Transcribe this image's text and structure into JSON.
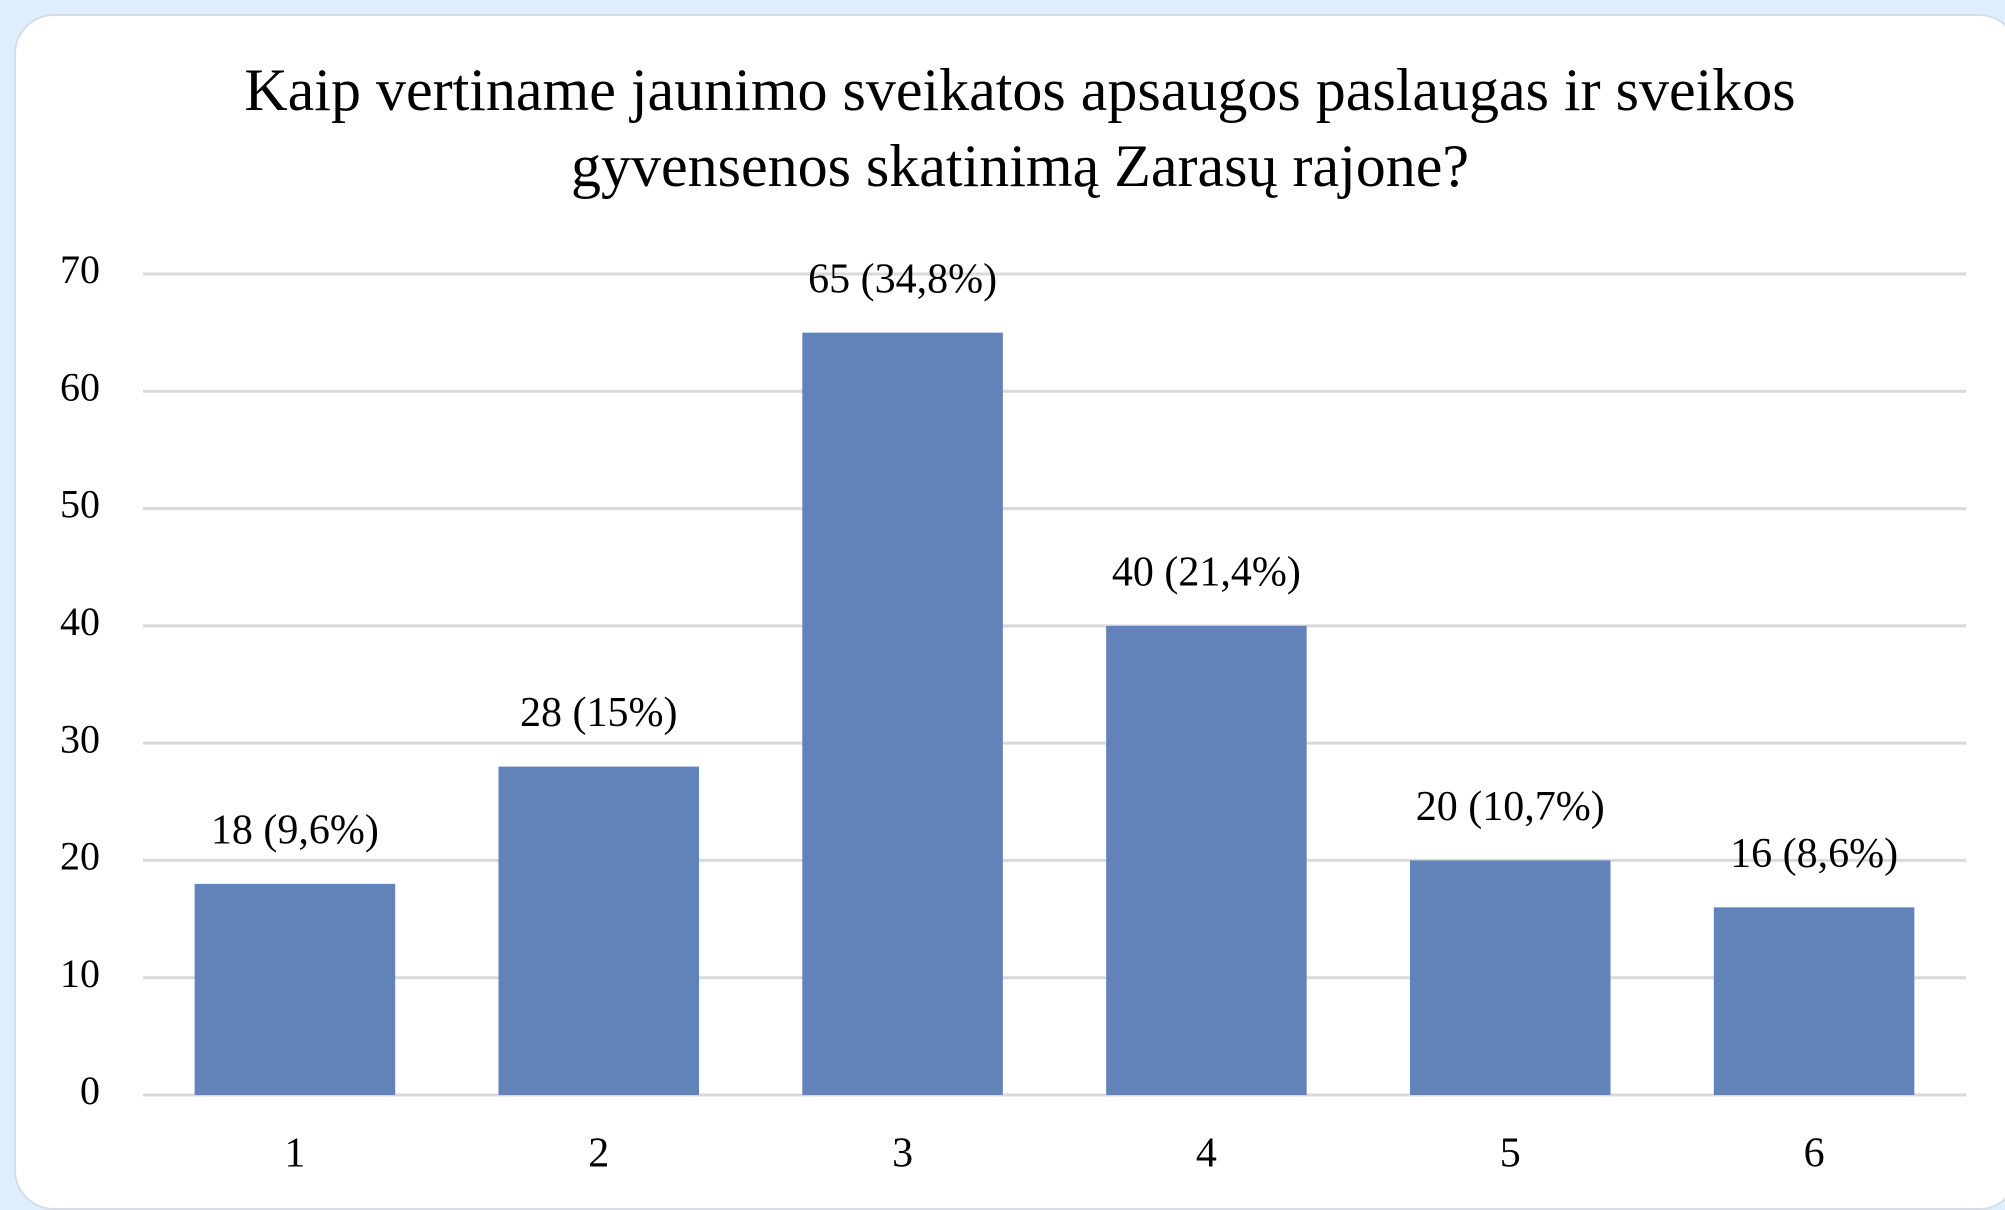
{
  "chart_data": {
    "type": "bar",
    "title": "Kaip vertiname jaunimo sveikatos apsaugos paslaugas ir sveikos gyvensenos skatinimą Zarasų rajone?",
    "categories": [
      "1",
      "2",
      "3",
      "4",
      "5",
      "6"
    ],
    "values": [
      18,
      28,
      65,
      40,
      20,
      16
    ],
    "value_labels": [
      "18 (9,6%)",
      "28 (15%)",
      "65 (34,8%)",
      "40 (21,4%)",
      "20 (10,7%)",
      "16 (8,6%)"
    ],
    "color": "#6183b9",
    "ylim": [
      0,
      70
    ],
    "yticks": [
      0,
      10,
      20,
      30,
      40,
      50,
      60,
      70
    ],
    "grid": true
  }
}
